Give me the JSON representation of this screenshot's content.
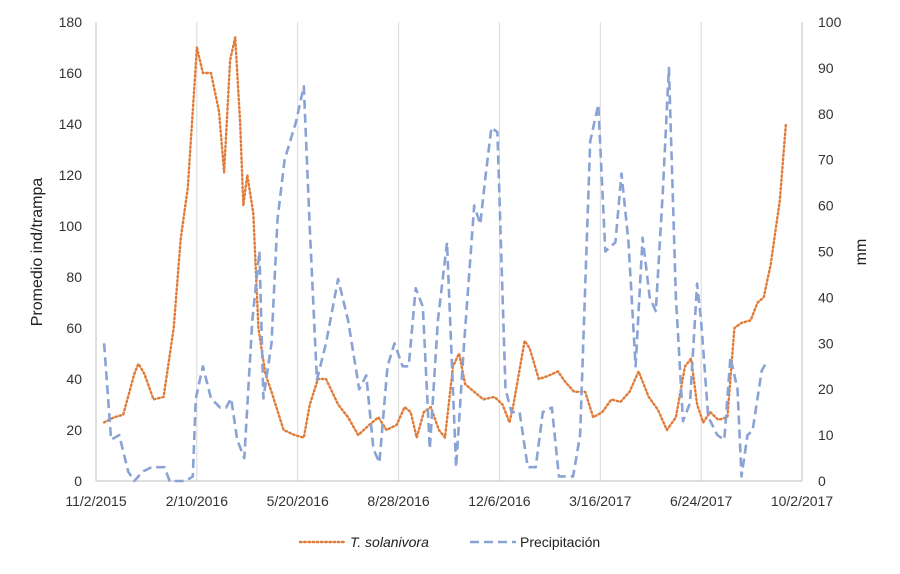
{
  "chart_data": {
    "type": "line",
    "x_axis": {
      "type": "date",
      "ticks": [
        "11/2/2015",
        "2/10/2016",
        "5/20/2016",
        "8/28/2016",
        "12/6/2016",
        "3/16/2017",
        "6/24/2017",
        "10/2/2017"
      ],
      "range": [
        "2015-11-02",
        "2017-10-02"
      ]
    },
    "y_left": {
      "label": "Promedio ind/trampa",
      "range": [
        0,
        180
      ],
      "step": 20
    },
    "y_right": {
      "label": "mm",
      "range": [
        0,
        100
      ],
      "step": 10
    },
    "grid": {
      "vertical": true,
      "horizontal": false
    },
    "legend_position": "bottom",
    "series": [
      {
        "name": "T. solanivora",
        "axis": "left",
        "color": "#E07B39",
        "style": "dotted",
        "points": [
          [
            "2015-11-10",
            23
          ],
          [
            "2015-11-20",
            25
          ],
          [
            "2015-11-29",
            26
          ],
          [
            "2015-12-10",
            42
          ],
          [
            "2015-12-14",
            46
          ],
          [
            "2015-12-20",
            42
          ],
          [
            "2015-12-29",
            32
          ],
          [
            "2016-01-08",
            33
          ],
          [
            "2016-01-18",
            60
          ],
          [
            "2016-01-25",
            95
          ],
          [
            "2016-02-01",
            115
          ],
          [
            "2016-02-10",
            170
          ],
          [
            "2016-02-16",
            160
          ],
          [
            "2016-02-24",
            160
          ],
          [
            "2016-03-03",
            145
          ],
          [
            "2016-03-08",
            121
          ],
          [
            "2016-03-14",
            165
          ],
          [
            "2016-03-19",
            174
          ],
          [
            "2016-03-24",
            140
          ],
          [
            "2016-03-27",
            108
          ],
          [
            "2016-03-31",
            120
          ],
          [
            "2016-04-06",
            105
          ],
          [
            "2016-04-11",
            60
          ],
          [
            "2016-04-18",
            42
          ],
          [
            "2016-04-24",
            35
          ],
          [
            "2016-05-06",
            20
          ],
          [
            "2016-05-17",
            18
          ],
          [
            "2016-05-26",
            17
          ],
          [
            "2016-06-01",
            30
          ],
          [
            "2016-06-09",
            40
          ],
          [
            "2016-06-17",
            40
          ],
          [
            "2016-06-29",
            30
          ],
          [
            "2016-07-09",
            25
          ],
          [
            "2016-07-19",
            18
          ],
          [
            "2016-07-30",
            22
          ],
          [
            "2016-08-08",
            25
          ],
          [
            "2016-08-16",
            20
          ],
          [
            "2016-08-26",
            22
          ],
          [
            "2016-09-03",
            29
          ],
          [
            "2016-09-09",
            27
          ],
          [
            "2016-09-15",
            17
          ],
          [
            "2016-09-22",
            27
          ],
          [
            "2016-09-29",
            29
          ],
          [
            "2016-10-07",
            20
          ],
          [
            "2016-10-13",
            17
          ],
          [
            "2016-10-21",
            45
          ],
          [
            "2016-10-27",
            50
          ],
          [
            "2016-11-02",
            38
          ],
          [
            "2016-11-11",
            35
          ],
          [
            "2016-11-20",
            32
          ],
          [
            "2016-12-01",
            33
          ],
          [
            "2016-12-09",
            30
          ],
          [
            "2016-12-16",
            23
          ],
          [
            "2016-12-20",
            30
          ],
          [
            "2016-12-31",
            55
          ],
          [
            "2017-01-05",
            52
          ],
          [
            "2017-01-14",
            40
          ],
          [
            "2017-01-22",
            41
          ],
          [
            "2017-02-02",
            43
          ],
          [
            "2017-02-09",
            39
          ],
          [
            "2017-02-18",
            35
          ],
          [
            "2017-03-01",
            35
          ],
          [
            "2017-03-09",
            25
          ],
          [
            "2017-03-18",
            27
          ],
          [
            "2017-03-27",
            32
          ],
          [
            "2017-04-05",
            31
          ],
          [
            "2017-04-14",
            35
          ],
          [
            "2017-04-23",
            43
          ],
          [
            "2017-05-03",
            33
          ],
          [
            "2017-05-12",
            28
          ],
          [
            "2017-05-21",
            20
          ],
          [
            "2017-05-30",
            25
          ],
          [
            "2017-06-08",
            45
          ],
          [
            "2017-06-14",
            48
          ],
          [
            "2017-06-20",
            30
          ],
          [
            "2017-06-26",
            23
          ],
          [
            "2017-07-03",
            27
          ],
          [
            "2017-07-11",
            24
          ],
          [
            "2017-07-20",
            25
          ],
          [
            "2017-07-27",
            60
          ],
          [
            "2017-08-03",
            62
          ],
          [
            "2017-08-12",
            63
          ],
          [
            "2017-08-19",
            70
          ],
          [
            "2017-08-25",
            72
          ],
          [
            "2017-09-01",
            85
          ],
          [
            "2017-09-10",
            110
          ],
          [
            "2017-09-16",
            140
          ]
        ]
      },
      {
        "name": "Precipitación",
        "axis": "right",
        "color": "#8AA3D5",
        "style": "dashed",
        "points": [
          [
            "2015-11-10",
            30
          ],
          [
            "2015-11-17",
            9
          ],
          [
            "2015-11-25",
            10
          ],
          [
            "2015-12-04",
            2
          ],
          [
            "2015-12-10",
            0
          ],
          [
            "2015-12-18",
            2
          ],
          [
            "2015-12-27",
            3
          ],
          [
            "2016-01-04",
            3
          ],
          [
            "2016-01-09",
            3
          ],
          [
            "2016-01-14",
            0
          ],
          [
            "2016-01-21",
            0
          ],
          [
            "2016-01-30",
            0
          ],
          [
            "2016-02-06",
            1
          ],
          [
            "2016-02-09",
            18
          ],
          [
            "2016-02-16",
            25
          ],
          [
            "2016-02-24",
            18
          ],
          [
            "2016-03-04",
            16
          ],
          [
            "2016-03-10",
            16
          ],
          [
            "2016-03-15",
            18
          ],
          [
            "2016-03-21",
            9
          ],
          [
            "2016-03-28",
            5
          ],
          [
            "2016-04-05",
            35
          ],
          [
            "2016-04-12",
            50
          ],
          [
            "2016-04-16",
            18
          ],
          [
            "2016-04-24",
            30
          ],
          [
            "2016-04-30",
            57
          ],
          [
            "2016-05-07",
            70
          ],
          [
            "2016-05-18",
            78
          ],
          [
            "2016-05-26",
            86
          ],
          [
            "2016-06-01",
            55
          ],
          [
            "2016-06-08",
            22
          ],
          [
            "2016-06-17",
            30
          ],
          [
            "2016-06-29",
            44
          ],
          [
            "2016-07-09",
            35
          ],
          [
            "2016-07-20",
            20
          ],
          [
            "2016-07-27",
            23
          ],
          [
            "2016-08-03",
            7
          ],
          [
            "2016-08-09",
            4
          ],
          [
            "2016-08-17",
            25
          ],
          [
            "2016-08-24",
            30
          ],
          [
            "2016-09-01",
            25
          ],
          [
            "2016-09-07",
            25
          ],
          [
            "2016-09-14",
            42
          ],
          [
            "2016-09-21",
            38
          ],
          [
            "2016-09-28",
            7
          ],
          [
            "2016-10-06",
            35
          ],
          [
            "2016-10-15",
            52
          ],
          [
            "2016-10-20",
            25
          ],
          [
            "2016-10-24",
            3
          ],
          [
            "2016-11-01",
            30
          ],
          [
            "2016-11-11",
            60
          ],
          [
            "2016-11-17",
            56
          ],
          [
            "2016-11-22",
            66
          ],
          [
            "2016-11-28",
            77
          ],
          [
            "2016-12-04",
            76
          ],
          [
            "2016-12-12",
            20
          ],
          [
            "2016-12-18",
            15
          ],
          [
            "2016-12-26",
            15
          ],
          [
            "2017-01-03",
            3
          ],
          [
            "2017-01-11",
            3
          ],
          [
            "2017-01-18",
            15
          ],
          [
            "2017-01-27",
            16
          ],
          [
            "2017-02-03",
            1
          ],
          [
            "2017-02-10",
            1
          ],
          [
            "2017-02-17",
            1
          ],
          [
            "2017-02-24",
            10
          ],
          [
            "2017-03-06",
            74
          ],
          [
            "2017-03-14",
            82
          ],
          [
            "2017-03-21",
            50
          ],
          [
            "2017-03-31",
            52
          ],
          [
            "2017-04-06",
            67
          ],
          [
            "2017-04-13",
            52
          ],
          [
            "2017-04-20",
            25
          ],
          [
            "2017-04-27",
            53
          ],
          [
            "2017-05-04",
            40
          ],
          [
            "2017-05-10",
            37
          ],
          [
            "2017-05-17",
            63
          ],
          [
            "2017-05-23",
            90
          ],
          [
            "2017-05-30",
            40
          ],
          [
            "2017-06-06",
            13
          ],
          [
            "2017-06-13",
            17
          ],
          [
            "2017-06-20",
            43
          ],
          [
            "2017-06-24",
            35
          ],
          [
            "2017-07-01",
            14
          ],
          [
            "2017-07-10",
            10
          ],
          [
            "2017-07-17",
            9
          ],
          [
            "2017-07-23",
            27
          ],
          [
            "2017-07-30",
            20
          ],
          [
            "2017-08-03",
            1
          ],
          [
            "2017-08-09",
            10
          ],
          [
            "2017-08-14",
            11
          ],
          [
            "2017-08-23",
            24
          ],
          [
            "2017-08-28",
            26
          ]
        ]
      }
    ]
  }
}
